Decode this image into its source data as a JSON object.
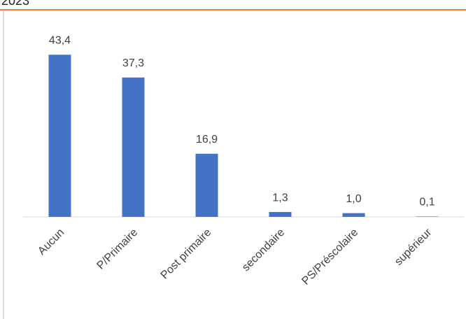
{
  "chart_data": {
    "type": "bar",
    "title": "2023",
    "categories": [
      "Aucun",
      "P/Primaire",
      "Post primaire",
      "secondaire",
      "PS/Préscolaire",
      "supérieur"
    ],
    "values": [
      43.4,
      37.3,
      16.9,
      1.3,
      1.0,
      0.1
    ],
    "value_labels": [
      "43,4",
      "37,3",
      "16,9",
      "1,3",
      "1,0",
      "0,1"
    ],
    "color": "#4472c4",
    "ylim": [
      0,
      50
    ]
  }
}
